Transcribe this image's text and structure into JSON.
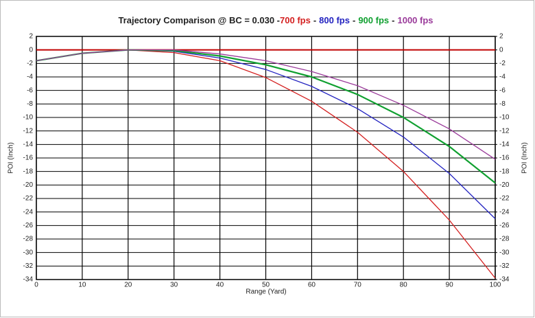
{
  "chart_data": {
    "type": "line",
    "title": "Trajectory Comparison @ BC = 0.030 -",
    "legend_separator": "-",
    "x_label": "Range (Yard)",
    "y_label": "POI (Inch)",
    "y2_label": "POI (Inch)",
    "x": [
      0,
      10,
      20,
      30,
      40,
      50,
      60,
      70,
      80,
      90,
      100
    ],
    "series": [
      {
        "name": "700 fps",
        "color": "#d42020",
        "values": [
          -1.6,
          -0.5,
          0,
          -0.4,
          -1.6,
          -4.1,
          -7.6,
          -12.2,
          -18,
          -25.2,
          -33.8
        ]
      },
      {
        "name": "800 fps",
        "color": "#2222c0",
        "values": [
          -1.6,
          -0.5,
          0,
          -0.2,
          -1.2,
          -2.9,
          -5.4,
          -8.7,
          -12.9,
          -18.3,
          -25
        ]
      },
      {
        "name": "900 fps",
        "color": "#10a030",
        "values": [
          -1.6,
          -0.5,
          0,
          -0.1,
          -0.9,
          -2.2,
          -4,
          -6.6,
          -10,
          -14.3,
          -19.7
        ]
      },
      {
        "name": "1000 fps",
        "color": "#9a3a9a",
        "values": [
          -1.6,
          -0.5,
          0,
          0,
          -0.6,
          -1.6,
          -3.2,
          -5.3,
          -8.2,
          -11.7,
          -16.2
        ]
      }
    ],
    "reference_line": {
      "value": 0,
      "color": "#c00000"
    },
    "xlim": [
      0,
      100
    ],
    "xticks": [
      0,
      10,
      20,
      30,
      40,
      50,
      60,
      70,
      80,
      90,
      100
    ],
    "ylim": [
      -34,
      2
    ],
    "yticks": [
      2,
      0,
      -2,
      -4,
      -6,
      -8,
      -10,
      -12,
      -14,
      -16,
      -18,
      -20,
      -22,
      -24,
      -26,
      -28,
      -30,
      -32,
      -34
    ],
    "y2lim": [
      -34,
      2
    ],
    "y2ticks": [
      2,
      0,
      -2,
      -4,
      -6,
      -8,
      -10,
      -12,
      -14,
      -16,
      -18,
      -20,
      -22,
      -24,
      -26,
      -28,
      -30,
      -32,
      -34
    ],
    "grid": true
  }
}
